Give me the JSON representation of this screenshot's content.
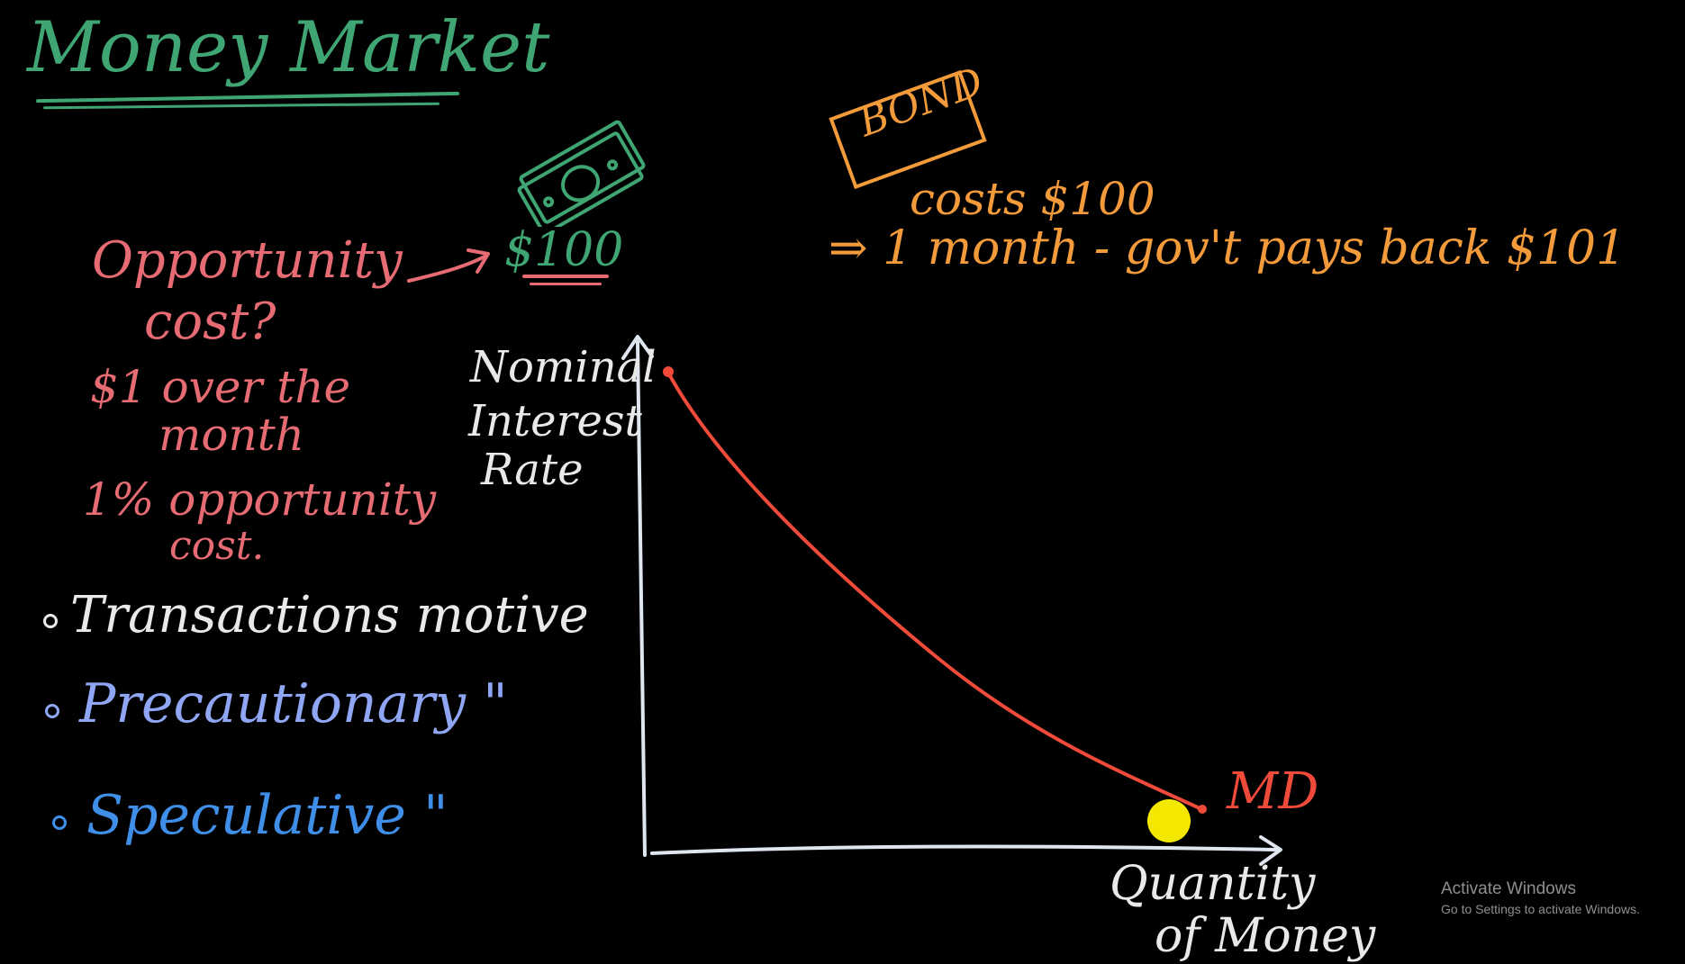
{
  "title": "Money Market",
  "opportunity_notes": {
    "line1": "Opportunity",
    "line2": "cost?",
    "line3": "$1 over the",
    "line4": "month",
    "line5": "1% opportunity",
    "line6": "cost."
  },
  "cash_value": "$100",
  "bond": {
    "label": "BOND",
    "cost_line": "costs $100",
    "payback_line": "⇒ 1 month - gov't pays back $101"
  },
  "motives": [
    {
      "label": "Transactions motive"
    },
    {
      "label": "Precautionary \""
    },
    {
      "label": "Speculative \""
    }
  ],
  "chart_data": {
    "type": "line",
    "xlabel_line1": "Quantity",
    "xlabel_line2": "of Money",
    "ylabel_line1": "Nominal",
    "ylabel_line2": "Interest",
    "ylabel_line3": "Rate",
    "series": [
      {
        "name": "MD",
        "color": "#f04a3a"
      }
    ],
    "highlight_color": "#f5e800",
    "axis_color": "#dfe6f0"
  },
  "watermark": {
    "title": "Activate Windows",
    "subtitle": "Go to Settings to activate Windows."
  },
  "colors": {
    "title": "#3fa573",
    "notes": "#e66b73",
    "bond": "#f39a3a",
    "transactions": "#e9e9e9",
    "precautionary": "#8fa6f4",
    "speculative": "#3f8fe8"
  }
}
